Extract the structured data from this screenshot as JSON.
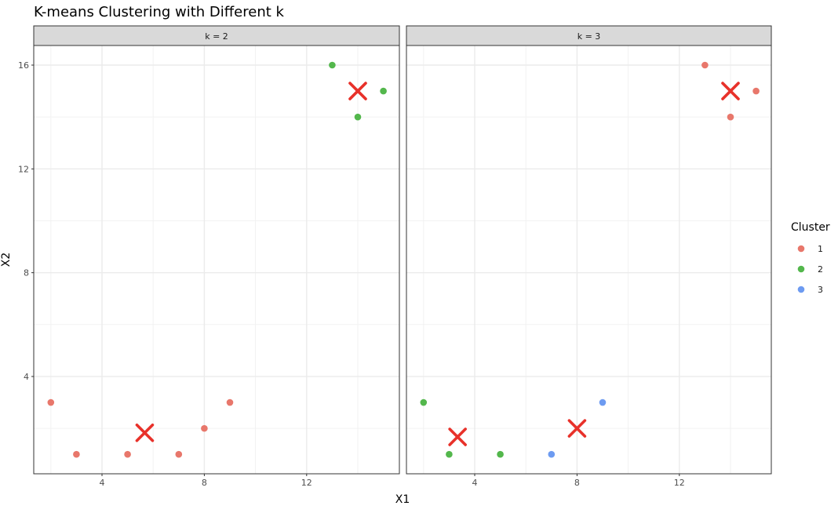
{
  "chart_data": {
    "type": "scatter",
    "title": "K-means Clustering with Different k",
    "xlabel": "X1",
    "ylabel": "X2",
    "xlim": [
      1.6,
      15.9
    ],
    "ylim": [
      0.4,
      16.7
    ],
    "x_ticks": [
      4,
      8,
      12
    ],
    "y_ticks": [
      4,
      8,
      12,
      16
    ],
    "grid": true,
    "legend": {
      "title": "Cluster",
      "position": "right",
      "entries": [
        {
          "label": "1",
          "color": "#E8776B"
        },
        {
          "label": "2",
          "color": "#53B74C"
        },
        {
          "label": "3",
          "color": "#6D9BF1"
        }
      ]
    },
    "centroid_color": "#E8312A",
    "facets": [
      {
        "label": "k = 2",
        "points": [
          {
            "x": 2,
            "y": 3,
            "cluster": "1"
          },
          {
            "x": 3,
            "y": 1,
            "cluster": "1"
          },
          {
            "x": 5,
            "y": 1,
            "cluster": "1"
          },
          {
            "x": 7,
            "y": 1,
            "cluster": "1"
          },
          {
            "x": 8,
            "y": 2,
            "cluster": "1"
          },
          {
            "x": 9,
            "y": 3,
            "cluster": "1"
          },
          {
            "x": 13,
            "y": 16,
            "cluster": "2"
          },
          {
            "x": 14,
            "y": 14,
            "cluster": "2"
          },
          {
            "x": 15,
            "y": 15,
            "cluster": "2"
          }
        ],
        "centroids": [
          {
            "x": 5.67,
            "y": 1.83
          },
          {
            "x": 14,
            "y": 15
          }
        ]
      },
      {
        "label": "k = 3",
        "points": [
          {
            "x": 2,
            "y": 3,
            "cluster": "2"
          },
          {
            "x": 3,
            "y": 1,
            "cluster": "2"
          },
          {
            "x": 5,
            "y": 1,
            "cluster": "2"
          },
          {
            "x": 7,
            "y": 1,
            "cluster": "3"
          },
          {
            "x": 9,
            "y": 3,
            "cluster": "3"
          },
          {
            "x": 13,
            "y": 16,
            "cluster": "1"
          },
          {
            "x": 14,
            "y": 14,
            "cluster": "1"
          },
          {
            "x": 15,
            "y": 15,
            "cluster": "1"
          }
        ],
        "centroids": [
          {
            "x": 3.33,
            "y": 1.67
          },
          {
            "x": 8,
            "y": 2
          },
          {
            "x": 14,
            "y": 15
          }
        ]
      }
    ]
  }
}
